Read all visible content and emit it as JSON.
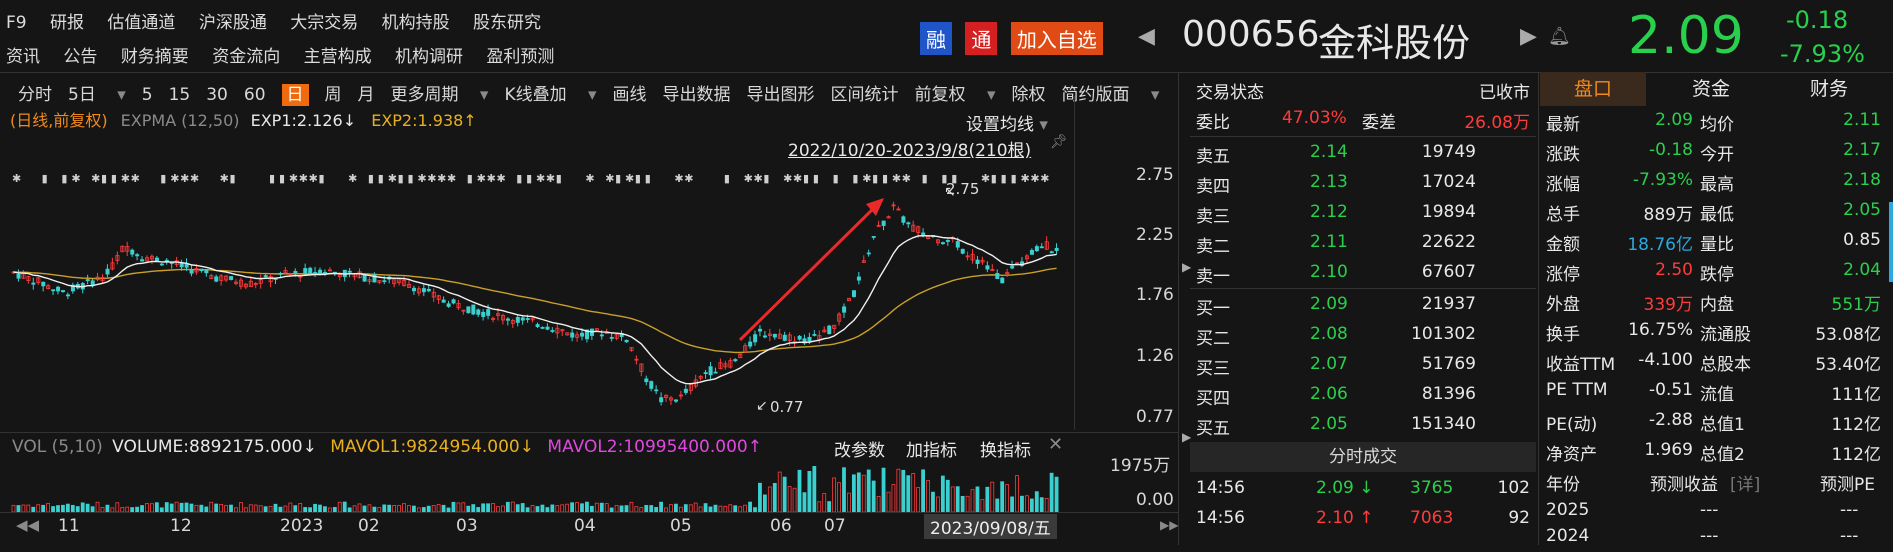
{
  "nav": {
    "row1": [
      "F9",
      "研报",
      "估值通道",
      "沪深股通",
      "大宗交易",
      "机构持股",
      "股东研究"
    ],
    "row2": [
      "资讯",
      "公告",
      "财务摘要",
      "资金流向",
      "主营构成",
      "机构调研",
      "盈利预测"
    ]
  },
  "header": {
    "badge_rong": "融",
    "badge_tong": "通",
    "add_watch": "加入自选",
    "code": "000656",
    "name": "金科股份",
    "price": "2.09",
    "change": "-0.18",
    "change_pct": "-7.93%"
  },
  "toolbar": {
    "items": [
      "分时",
      "5日",
      "5",
      "15",
      "30",
      "60",
      "日",
      "周",
      "月",
      "更多周期",
      "K线叠加",
      "画线",
      "导出数据",
      "导出图形",
      "区间统计",
      "前复权",
      "除权",
      "简约版面"
    ],
    "active": "日"
  },
  "chart": {
    "indicator_line": "(日线,前复权)",
    "expma": "EXPMA (12,50)",
    "exp1": "EXP1:2.126↓",
    "exp2": "EXP2:1.938↑",
    "set_ma": "设置均线",
    "range": "2022/10/20-2023/9/8(210根)",
    "hi_label": "2.75",
    "lo_label": "0.77",
    "y_ticks": [
      "2.75",
      "2.25",
      "1.76",
      "1.26",
      "0.77"
    ],
    "vol_label": "VOL (5,10)",
    "volume": "VOLUME:8892175.000↓",
    "mavol1": "MAVOL1:9824954.000↓",
    "mavol2": "MAVOL2:10995400.000↑",
    "vol_buttons": [
      "改参数",
      "加指标",
      "换指标"
    ],
    "vol_ticks": [
      "1975万",
      "0.00"
    ],
    "x_labels": [
      "11",
      "12",
      "2023",
      "02",
      "03",
      "04",
      "05",
      "06",
      "07"
    ],
    "cursor_date": "2023/09/08/五"
  },
  "orderbook": {
    "status_label": "交易状态",
    "status_value": "已收市",
    "wb_label": "委比",
    "wb_value": "47.03%",
    "wc_label": "委差",
    "wc_value": "26.08万",
    "asks": [
      {
        "label": "卖五",
        "price": "2.14",
        "vol": "19749"
      },
      {
        "label": "卖四",
        "price": "2.13",
        "vol": "17024"
      },
      {
        "label": "卖三",
        "price": "2.12",
        "vol": "19894"
      },
      {
        "label": "卖二",
        "price": "2.11",
        "vol": "22622"
      },
      {
        "label": "卖一",
        "price": "2.10",
        "vol": "67607"
      }
    ],
    "bids": [
      {
        "label": "买一",
        "price": "2.09",
        "vol": "21937"
      },
      {
        "label": "买二",
        "price": "2.08",
        "vol": "101302"
      },
      {
        "label": "买三",
        "price": "2.07",
        "vol": "51769"
      },
      {
        "label": "买四",
        "price": "2.06",
        "vol": "81396"
      },
      {
        "label": "买五",
        "price": "2.05",
        "vol": "151340"
      }
    ],
    "ticks_title": "分时成交",
    "ticks": [
      {
        "time": "14:56",
        "price": "2.09 ↓",
        "vol": "3765",
        "n": "102"
      },
      {
        "time": "14:56",
        "price": "2.10 ↑",
        "vol": "7063",
        "n": "92"
      }
    ]
  },
  "stats": {
    "tabs": [
      "盘口",
      "资金",
      "财务"
    ],
    "rows": [
      {
        "l1": "最新",
        "v1": "2.09",
        "c1": "green",
        "l2": "均价",
        "v2": "2.11",
        "c2": "green"
      },
      {
        "l1": "涨跌",
        "v1": "-0.18",
        "c1": "green",
        "l2": "今开",
        "v2": "2.17",
        "c2": "green"
      },
      {
        "l1": "涨幅",
        "v1": "-7.93%",
        "c1": "green",
        "l2": "最高",
        "v2": "2.18",
        "c2": "green"
      },
      {
        "l1": "总手",
        "v1": "889万",
        "c1": "white",
        "l2": "最低",
        "v2": "2.05",
        "c2": "green"
      },
      {
        "l1": "金额",
        "v1": "18.76亿",
        "c1": "blue",
        "l2": "量比",
        "v2": "0.85",
        "c2": "white"
      },
      {
        "l1": "涨停",
        "v1": "2.50",
        "c1": "red",
        "l2": "跌停",
        "v2": "2.04",
        "c2": "green"
      },
      {
        "l1": "外盘",
        "v1": "339万",
        "c1": "red",
        "l2": "内盘",
        "v2": "551万",
        "c2": "green"
      },
      {
        "l1": "换手",
        "v1": "16.75%",
        "c1": "white",
        "l2": "流通股",
        "v2": "53.08亿",
        "c2": "white"
      },
      {
        "l1": "收益TTM",
        "v1": "-4.100",
        "c1": "white",
        "l2": "总股本",
        "v2": "53.40亿",
        "c2": "white"
      },
      {
        "l1": "PE TTM",
        "v1": "-0.51",
        "c1": "white",
        "l2": "流值",
        "v2": "111亿",
        "c2": "white"
      },
      {
        "l1": "PE(动)",
        "v1": "-2.88",
        "c1": "white",
        "l2": "总值1",
        "v2": "112亿",
        "c2": "white"
      },
      {
        "l1": "净资产",
        "v1": "1.969",
        "c1": "white",
        "l2": "总值2",
        "v2": "112亿",
        "c2": "white"
      }
    ],
    "forecast_header": [
      "年份",
      "预测收益",
      "[详]",
      "预测PE"
    ],
    "forecast": [
      {
        "year": "2025",
        "eps": "---",
        "pe": "---"
      },
      {
        "year": "2024",
        "eps": "---",
        "pe": "---"
      }
    ]
  }
}
